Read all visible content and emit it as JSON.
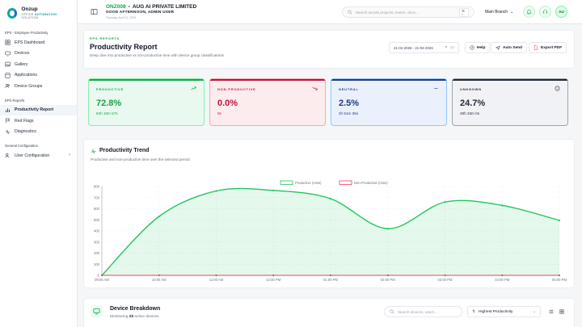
{
  "brand": {
    "name": "Onzup",
    "tag_pre": "OFFICE ",
    "tag_hl": "AUTOMATION",
    "tag_post": " SOLUTION"
  },
  "sidebar": {
    "sections": [
      {
        "title": "EPS - Employee Productivity",
        "items": [
          {
            "label": "EPS Dashboard",
            "icon": "dashboard-icon"
          },
          {
            "label": "Devices",
            "icon": "monitor-icon"
          },
          {
            "label": "Gallery",
            "icon": "image-icon"
          },
          {
            "label": "Applications",
            "icon": "apps-icon"
          },
          {
            "label": "Device Groups",
            "icon": "users-icon"
          }
        ]
      },
      {
        "title": "EPS Reports",
        "items": [
          {
            "label": "Productivity Report",
            "icon": "chart-icon",
            "active": true
          },
          {
            "label": "Red Flags",
            "icon": "flag-icon"
          },
          {
            "label": "Diagnostics",
            "icon": "pulse-icon"
          }
        ]
      },
      {
        "title": "General Configuration",
        "items": [
          {
            "label": "User Configuration",
            "icon": "user-cog-icon",
            "chevron": "›"
          }
        ]
      }
    ]
  },
  "header": {
    "org_code": "ONZ008",
    "org_sep": "•",
    "org_name": "AUG AI PRIVATE LIMITED",
    "greeting": "GOOD AFTERNOON, ADMIN USER",
    "date": "Tuesday, April 21, 2026",
    "search_placeholder": "Search across projects, teams, docs...",
    "search_shortcut": "⌘ •",
    "branch": "Main Branch",
    "avatar": "AU"
  },
  "report": {
    "eyebrow": "EPS REPORTS",
    "title": "Productivity Report",
    "subtitle": "Deep dive into productive vs non-productive time with device group classifications.",
    "date_range": "21-04-2026 - 21-04-2026",
    "help": "Help",
    "auto_send": "Auto Send",
    "export": "Export PDF"
  },
  "kpis": [
    {
      "label": "PRODUCTIVE",
      "value": "72.8%",
      "sub": "84h 10m 57s",
      "color": "#16a34a",
      "bg": "#e9f9ef",
      "border": "#86efac",
      "icon": "trend-up-icon"
    },
    {
      "label": "NON-PRODUCTIVE",
      "value": "0.0%",
      "sub": "0s",
      "color": "#be123c",
      "bg": "#fdecee",
      "border": "#fda4af",
      "icon": "trend-down-icon"
    },
    {
      "label": "NEUTRAL",
      "value": "2.5%",
      "sub": "2h 51m 36s",
      "color": "#1e3a8a",
      "bg": "#eaf1fc",
      "border": "#93c5fd",
      "icon": "minus-icon"
    },
    {
      "label": "UNKNOWN",
      "value": "24.7%",
      "sub": "28h 33m 0s",
      "color": "#1f2937",
      "bg": "#f1f2f5",
      "border": "#9ca3af",
      "icon": "help-circle-icon"
    }
  ],
  "trend": {
    "title": "Productivity Trend",
    "subtitle": "Productive and non-productive time over the selected period"
  },
  "chart_data": {
    "type": "area",
    "categories": [
      "09:00 AM",
      "10:00 AM",
      "11:00 AM",
      "12:00 PM",
      "01:00 PM",
      "02:00 PM",
      "03:00 PM",
      "04:00 PM",
      "05:00 PM"
    ],
    "series": [
      {
        "name": "Productive (mins)",
        "values": [
          0,
          530,
          760,
          765,
          690,
          420,
          660,
          630,
          495
        ],
        "color": "#22c55e"
      },
      {
        "name": "Non-Productive (mins)",
        "values": [
          0,
          0,
          0,
          0,
          0,
          0,
          0,
          0,
          0
        ],
        "color": "#f43f5e"
      }
    ],
    "yticks": [
      0,
      100,
      200,
      300,
      400,
      500,
      600,
      700,
      800
    ],
    "ylim": [
      0,
      800
    ],
    "grid": true,
    "legend": "top-center"
  },
  "devices": {
    "title": "Device Breakdown",
    "sub_pre": "Monitoring ",
    "count": "23",
    "sub_post": " active devices",
    "search_placeholder": "Search devices, users...",
    "sort": "Highest Productivity"
  }
}
